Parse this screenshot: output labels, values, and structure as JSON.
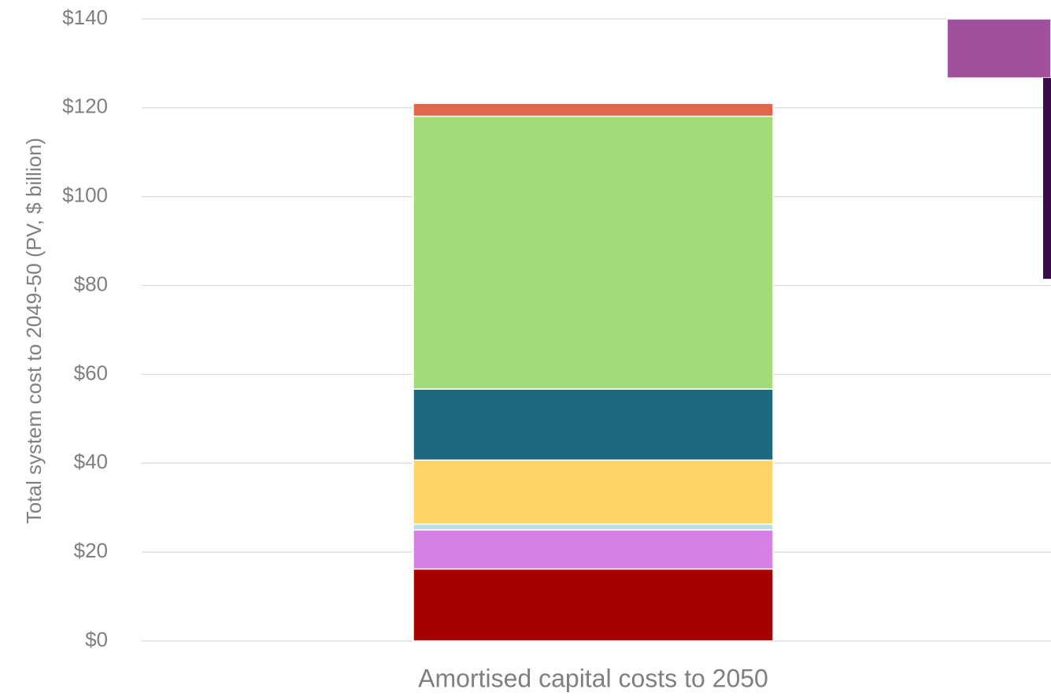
{
  "chart_data": {
    "type": "bar",
    "stacked": true,
    "title": "",
    "xlabel": "",
    "ylabel": "Total system cost to 2049-50 (PV, $ billion)",
    "ylim": [
      0,
      140
    ],
    "yticks": [
      0,
      20,
      40,
      60,
      80,
      100,
      120,
      140
    ],
    "ytick_labels": [
      "$0",
      "$20",
      "$40",
      "$60",
      "$80",
      "$100",
      "$120",
      "$140"
    ],
    "grid": true,
    "categories": [
      "Amortised capital costs to 2050"
    ],
    "segments": [
      {
        "value": 16.2,
        "color": "#a50000"
      },
      {
        "value": 8.8,
        "color": "#d580e3"
      },
      {
        "value": 1.3,
        "color": "#b8dfe8"
      },
      {
        "value": 14.4,
        "color": "#ffd466"
      },
      {
        "value": 16.0,
        "color": "#1f6980"
      },
      {
        "value": 61.4,
        "color": "#a3da7a"
      },
      {
        "value": 2.9,
        "color": "#e0674d"
      }
    ],
    "partial_next_bar": {
      "segments": [
        {
          "from": 126.7,
          "to": 140.0,
          "color": "#a0519b"
        },
        {
          "from": 81.5,
          "to": 126.7,
          "color": "#3b0a4a"
        }
      ]
    }
  }
}
